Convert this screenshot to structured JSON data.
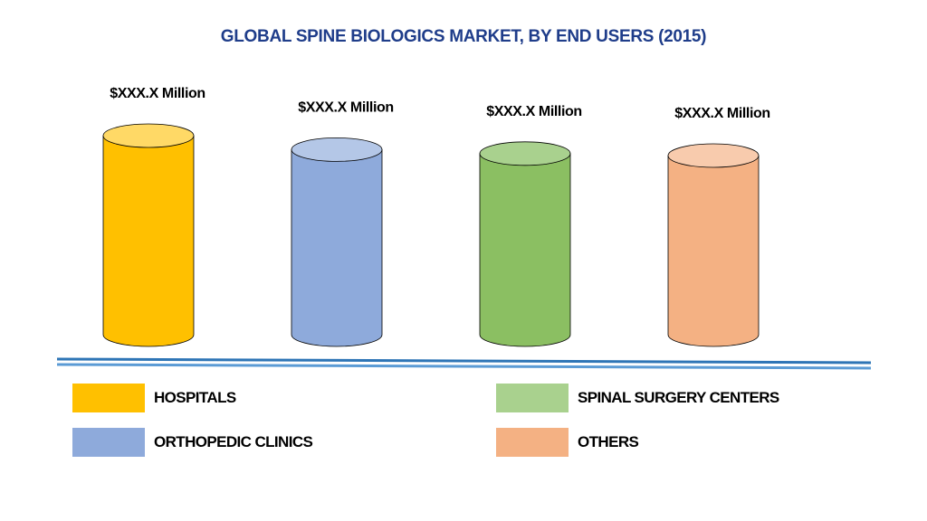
{
  "title": "GLOBAL SPINE BIOLOGICS MARKET, BY END USERS (2015)",
  "chart_data": {
    "type": "bar",
    "style": "3d-cylinder",
    "title": "GLOBAL SPINE BIOLOGICS MARKET, BY END USERS (2015)",
    "categories": [
      "HOSPITALS",
      "ORTHOPEDIC CLINICS",
      "SPINAL SURGERY CENTERS",
      "OTHERS"
    ],
    "data_labels": [
      "$XXX.X Million",
      "$XXX.X Million",
      "$XXX.X Million",
      "$XXX.X Million"
    ],
    "relative_heights": [
      1.0,
      0.93,
      0.91,
      0.9
    ],
    "colors": [
      "#ffc000",
      "#8eaadb",
      "#8bbf62",
      "#f4b183"
    ],
    "top_colors": [
      "#ffd966",
      "#b4c7e7",
      "#a9d18e",
      "#f8cbad"
    ],
    "legend": [
      {
        "label": "HOSPITALS",
        "color": "#ffc000"
      },
      {
        "label": "ORTHOPEDIC CLINICS",
        "color": "#8eaadb"
      },
      {
        "label": "SPINAL SURGERY CENTERS",
        "color": "#a9d18e"
      },
      {
        "label": "OTHERS",
        "color": "#f4b183"
      }
    ],
    "legend_position": "bottom",
    "grid": false,
    "xlabel": "",
    "ylabel": ""
  }
}
